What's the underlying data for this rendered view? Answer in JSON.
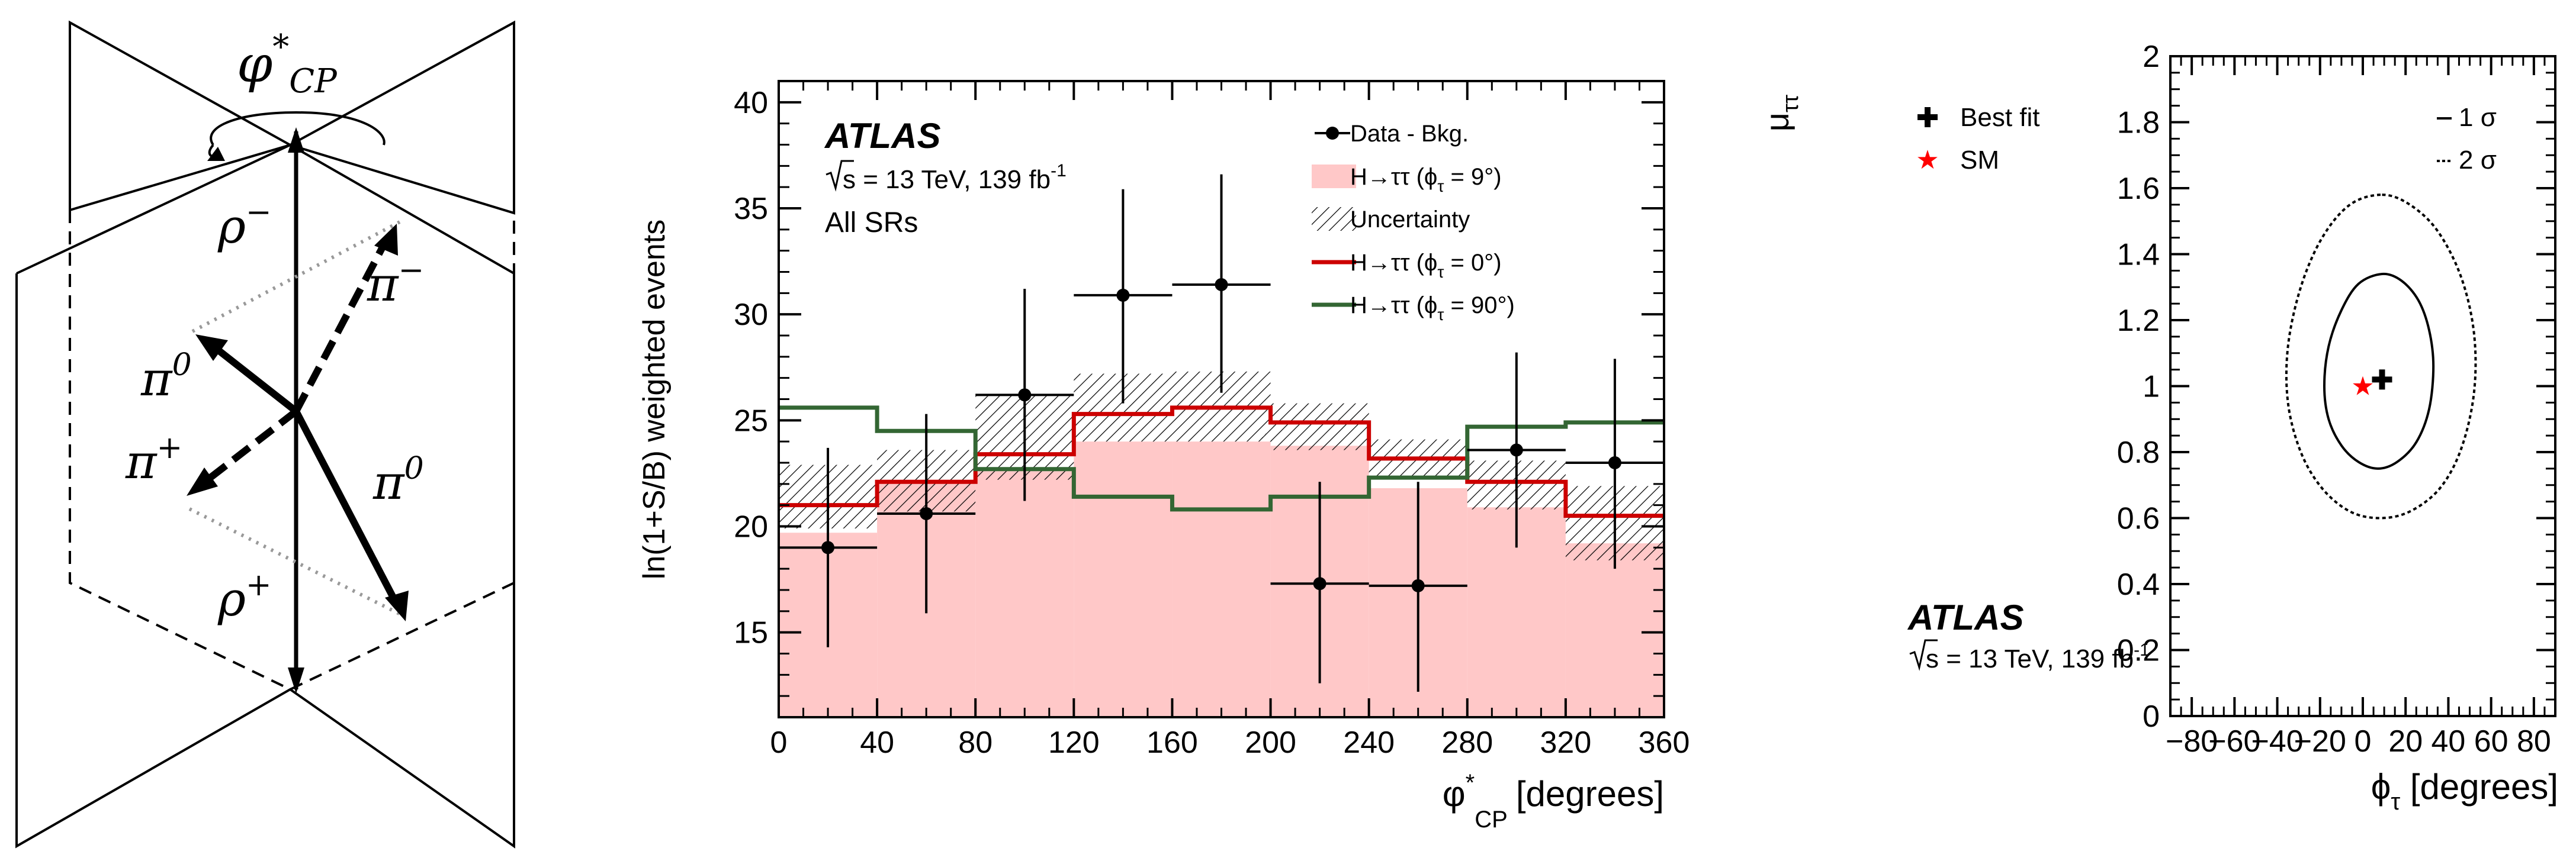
{
  "diagram": {
    "phi_label": "φ",
    "phi_sup": "*",
    "phi_sub": "CP",
    "rho_minus": "ρ",
    "rho_minus_sup": "−",
    "rho_plus": "ρ",
    "rho_plus_sup": "+",
    "pi_minus": "π",
    "pi_minus_sup": "−",
    "pi_plus": "π",
    "pi_plus_sup": "+",
    "pi0_left": "π",
    "pi0_left_sup": "0",
    "pi0_right": "π",
    "pi0_right_sup": "0"
  },
  "chart_data": [
    {
      "type": "bar",
      "ylabel": "ln(1+S/B) weighted events",
      "xlabel_main": "φ",
      "xlabel_sup": "*",
      "xlabel_sub": "CP",
      "xlabel_unit": "[degrees]",
      "xlim": [
        0,
        360
      ],
      "ylim": [
        11,
        41
      ],
      "xticks": [
        0,
        40,
        80,
        120,
        160,
        200,
        240,
        280,
        320,
        360
      ],
      "yticks": [
        15,
        20,
        25,
        30,
        35,
        40
      ],
      "atlas": "ATLAS",
      "energy_pre": "s = 13 TeV, 139 fb",
      "energy_sup": "-1",
      "region": "All SRs",
      "bin_edges": [
        0,
        40,
        80,
        120,
        160,
        200,
        240,
        280,
        320,
        360
      ],
      "series": [
        {
          "name": "H→ττ (ϕτ = 9°)",
          "legend_main": "H→ττ (ϕ",
          "legend_sub": "τ",
          "legend_tail": " = 9°)",
          "kind": "fill",
          "color": "#ffc8c8",
          "values": [
            19.7,
            22.2,
            22.6,
            24.0,
            24.0,
            23.8,
            21.8,
            20.9,
            19.2
          ]
        },
        {
          "name": "Uncertainty",
          "legend_main": "Uncertainty",
          "kind": "band",
          "low": [
            19.9,
            20.7,
            22.2,
            24.0,
            24.0,
            23.6,
            22.3,
            20.8,
            18.4
          ],
          "high": [
            22.9,
            23.6,
            26.2,
            27.2,
            27.3,
            25.8,
            24.1,
            23.1,
            21.9
          ]
        },
        {
          "name": "H→ττ (ϕτ = 0°)",
          "legend_main": "H→ττ (ϕ",
          "legend_sub": "τ",
          "legend_tail": " = 0°)",
          "kind": "step",
          "color": "#cc0000",
          "values": [
            21.0,
            22.1,
            23.4,
            25.3,
            25.6,
            24.9,
            23.2,
            22.1,
            20.5
          ]
        },
        {
          "name": "H→ττ (ϕτ = 90°)",
          "legend_main": "H→ττ (ϕ",
          "legend_sub": "τ",
          "legend_tail": " = 90°)",
          "kind": "step",
          "color": "#336633",
          "values": [
            25.6,
            24.5,
            22.7,
            21.4,
            20.8,
            21.4,
            22.3,
            24.7,
            24.9
          ]
        },
        {
          "name": "Data - Bkg.",
          "legend_main": "Data - Bkg.",
          "kind": "points",
          "x": [
            20,
            60,
            100,
            140,
            180,
            220,
            260,
            300,
            340
          ],
          "values": [
            19.0,
            20.6,
            26.2,
            30.9,
            31.4,
            17.3,
            17.2,
            23.6,
            23.0
          ],
          "err_low": [
            4.7,
            4.7,
            5.0,
            5.1,
            5.1,
            4.7,
            5.0,
            4.6,
            5.0
          ],
          "err_high": [
            4.7,
            4.7,
            5.0,
            5.0,
            5.2,
            4.8,
            4.9,
            4.6,
            4.9
          ]
        }
      ]
    },
    {
      "type": "contour",
      "ylabel_main": "μ",
      "ylabel_sub": "ττ",
      "xlabel_main": "ϕ",
      "xlabel_sub": "τ",
      "xlabel_unit": " [degrees]",
      "xlim": [
        -90,
        90
      ],
      "ylim": [
        0,
        2
      ],
      "xticks": [
        -80,
        -60,
        -40,
        -20,
        0,
        20,
        40,
        60,
        80
      ],
      "yticks": [
        0,
        0.2,
        0.4,
        0.6,
        0.8,
        1,
        1.2,
        1.4,
        1.6,
        1.8,
        2
      ],
      "ytick_labels": [
        "0",
        "0.2",
        "0.4",
        "0.6",
        "0.8",
        "1",
        "1.2",
        "1.4",
        "1.6",
        "1.8",
        "2"
      ],
      "xtick_labels": [
        "−80",
        "−60",
        "−40",
        "−20",
        "0",
        "20",
        "40",
        "60",
        "80"
      ],
      "atlas": "ATLAS",
      "energy_pre": "s = 13 TeV, 139 fb",
      "energy_sup": "-1",
      "legend_best_fit": "Best fit",
      "legend_sm": "SM",
      "legend_1sigma": "1 σ",
      "legend_2sigma": "2 σ",
      "best_fit": {
        "x": 9,
        "y": 1.02
      },
      "sm": {
        "x": 0,
        "y": 1.0
      },
      "contour_1sigma": [
        [
          9,
          1.34
        ],
        [
          18,
          1.32
        ],
        [
          26,
          1.26
        ],
        [
          31,
          1.17
        ],
        [
          33,
          1.06
        ],
        [
          31,
          0.93
        ],
        [
          25,
          0.83
        ],
        [
          16,
          0.77
        ],
        [
          7,
          0.75
        ],
        [
          -2,
          0.77
        ],
        [
          -10,
          0.82
        ],
        [
          -16,
          0.9
        ],
        [
          -18,
          1.0
        ],
        [
          -16,
          1.12
        ],
        [
          -10,
          1.23
        ],
        [
          -2,
          1.31
        ],
        [
          9,
          1.34
        ]
      ],
      "contour_2sigma": [
        [
          9,
          1.58
        ],
        [
          22,
          1.55
        ],
        [
          35,
          1.47
        ],
        [
          46,
          1.33
        ],
        [
          52,
          1.16
        ],
        [
          52,
          0.98
        ],
        [
          46,
          0.81
        ],
        [
          36,
          0.69
        ],
        [
          22,
          0.62
        ],
        [
          8,
          0.6
        ],
        [
          -6,
          0.62
        ],
        [
          -19,
          0.69
        ],
        [
          -29,
          0.8
        ],
        [
          -35,
          0.95
        ],
        [
          -35,
          1.12
        ],
        [
          -29,
          1.3
        ],
        [
          -19,
          1.45
        ],
        [
          -6,
          1.55
        ],
        [
          9,
          1.58
        ]
      ]
    }
  ]
}
